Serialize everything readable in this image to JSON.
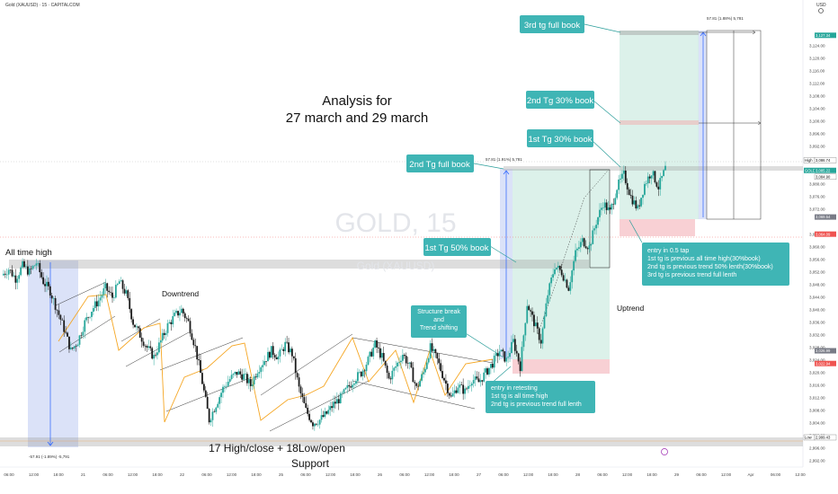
{
  "header": {
    "title": "Gold (XAUUSD) · 15 · CAPITALCOM",
    "currency": "USD"
  },
  "watermark": {
    "symbol": "GOLD, 15",
    "name": "Gold (XAUUSD)"
  },
  "chart_data": {
    "type": "candlestick",
    "title": "Analysis for",
    "subtitle": "27 march and 29 march",
    "y_ticks": [
      "3,124.00",
      "3,120.00",
      "3,116.00",
      "3,112.00",
      "3,108.00",
      "3,104.00",
      "3,100.00",
      "3,096.00",
      "3,092.00",
      "3,088.00",
      "3,080.00",
      "3,076.00",
      "3,072.00",
      "3,064.00",
      "3,060.00",
      "3,056.00",
      "3,052.00",
      "3,048.00",
      "3,044.00",
      "3,040.00",
      "3,036.00",
      "3,032.00",
      "3,028.00",
      "3,024.00",
      "3,020.00",
      "3,016.00",
      "3,012.00",
      "3,008.00",
      "3,004.00",
      "3,000.00",
      "2,996.00",
      "2,992.00"
    ],
    "ylim": [
      2990,
      3130
    ],
    "x_ticks": [
      "06:00",
      "12:00",
      "18:00",
      "21",
      "06:00",
      "12:00",
      "18:00",
      "22",
      "06:00",
      "12:00",
      "18:00",
      "25",
      "06:00",
      "12:00",
      "18:00",
      "26",
      "06:00",
      "12:00",
      "18:00",
      "27",
      "06:00",
      "12:00",
      "18:00",
      "28",
      "06:00",
      "12:00",
      "18:00",
      "29",
      "06:00",
      "12:00",
      "Apr",
      "06:00",
      "12:00"
    ],
    "price_labels": [
      {
        "text": "3,127.34",
        "color": "#26a69a",
        "price": 3127.34
      },
      {
        "text": "High",
        "color": "#ffffff",
        "price": 3086.74
      },
      {
        "text": "3,086.74",
        "color": "#ffffff",
        "price": 3086.74
      },
      {
        "text": "GOLD",
        "color": "#26a69a",
        "price": 3085.22
      },
      {
        "text": "3,085.22",
        "color": "#26a69a",
        "price": 3085.22
      },
      {
        "text": "3,084.90",
        "color": "#ffffff",
        "price": 3084.9
      },
      {
        "text": "3,069.54",
        "color": "#787b86",
        "price": 3069.54
      },
      {
        "text": "3,064.09",
        "color": "#ef5350",
        "price": 3064.09
      },
      {
        "text": "3,026.99",
        "color": "#787b86",
        "price": 3026.99
      },
      {
        "text": "3,022.94",
        "color": "#ef5350",
        "price": 3022.94
      },
      {
        "text": "Low",
        "color": "#ffffff",
        "price": 2999.43
      },
      {
        "text": "2,999.43",
        "color": "#ffffff",
        "price": 2999.43
      }
    ],
    "price_series": [
      3051,
      3053,
      3050,
      3054,
      3052,
      3055,
      3049,
      3046,
      3040,
      3034,
      3027,
      3030,
      3036,
      3040,
      3043,
      3047,
      3044,
      3049,
      3045,
      3036,
      3032,
      3028,
      3025,
      3030,
      3035,
      3038,
      3040,
      3036,
      3028,
      3017,
      3005,
      3010,
      3015,
      3018,
      3020,
      3019,
      3016,
      3021,
      3024,
      3027,
      3025,
      3029,
      3026,
      3015,
      3008,
      3004,
      3005,
      3007,
      3010,
      3012,
      3015,
      3018,
      3020,
      3024,
      3029,
      3025,
      3018,
      3022,
      3026,
      3022,
      3015,
      3020,
      3028,
      3024,
      3018,
      3012,
      3016,
      3014,
      3018,
      3017,
      3020,
      3023,
      3027,
      3024,
      3030,
      3022,
      3042,
      3036,
      3030,
      3045,
      3054,
      3052,
      3047,
      3058,
      3062,
      3060,
      3068,
      3074,
      3071,
      3079,
      3083,
      3076,
      3072,
      3080,
      3084,
      3079,
      3085
    ],
    "annotations": [
      {
        "text": "3rd tg full book"
      },
      {
        "text": "2nd Tg 30% book"
      },
      {
        "text": "1st Tg 30% book"
      },
      {
        "text": "2nd Tg full book"
      },
      {
        "text": "1st Tg 50% book"
      },
      {
        "text": "Structure break and Trend shifting"
      },
      {
        "text": "entry in retesting\n1st tg is all time high\n2nd tg is previous trend full lenth"
      },
      {
        "text": "entry in 0.5 tap\n1st tg is previous all time high(30%book)\n2nd tg is previous trend 50% lenth(30%book)\n3rd tg is previous trend full lenth"
      }
    ],
    "labels": {
      "all_time_high": "All time high",
      "downtrend": "Downtrend",
      "uptrend": "Uptrend",
      "support_line1": "17 High/close + 18Low/open",
      "support_line2": "Support"
    },
    "measurements": [
      {
        "text": "57.81 (1.88%) 5,781"
      },
      {
        "text": "57.81 (1.91%) 5,781"
      },
      {
        "text": "-57.91 (-1.89%) -5,791"
      }
    ]
  }
}
